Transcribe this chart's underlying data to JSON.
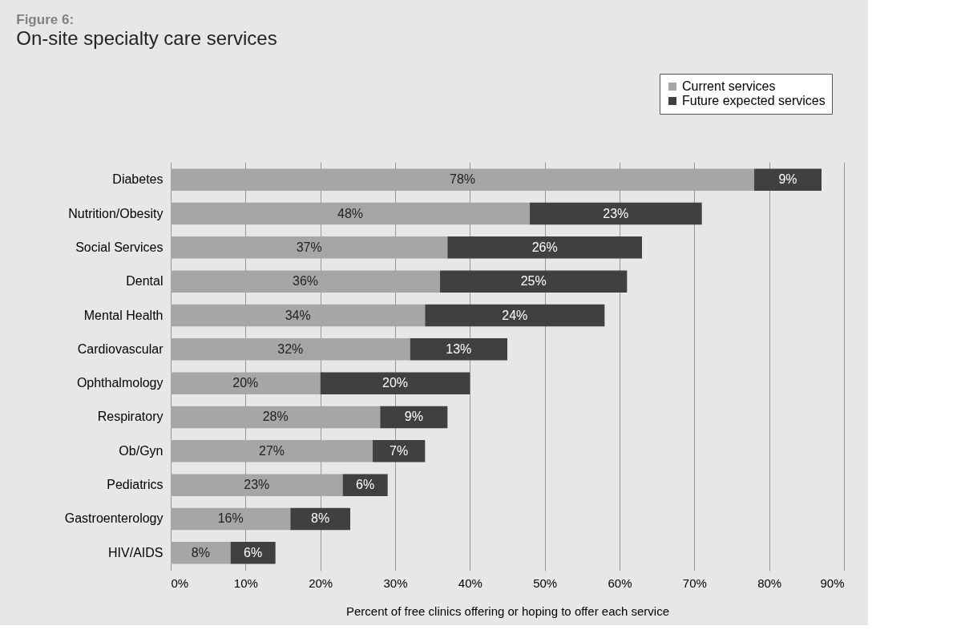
{
  "chart_data": {
    "type": "bar",
    "orientation": "horizontal",
    "stacked": true,
    "title": "Figure 6:",
    "subtitle": "On-site specialty care services",
    "xlabel": "Percent of free clinics offering or hoping to offer each service",
    "categories": [
      "Diabetes",
      "Nutrition/Obesity",
      "Social Services",
      "Dental",
      "Mental Health",
      "Cardiovascular",
      "Ophthalmology",
      "Respiratory",
      "Ob/Gyn",
      "Pediatrics",
      "Gastroenterology",
      "HIV/AIDS"
    ],
    "series": [
      {
        "name": "Current services",
        "color": "#a6a6a6",
        "values": [
          78,
          48,
          37,
          36,
          34,
          32,
          20,
          28,
          27,
          23,
          16,
          8
        ],
        "value_labels": [
          "78%",
          "48%",
          "37%",
          "36%",
          "34%",
          "32%",
          "20%",
          "28%",
          "27%",
          "23%",
          "16%",
          "8%"
        ]
      },
      {
        "name": "Future expected services",
        "color": "#404040",
        "values": [
          9,
          23,
          26,
          25,
          24,
          13,
          20,
          9,
          7,
          6,
          8,
          6
        ],
        "value_labels": [
          "9%",
          "23%",
          "26%",
          "25%",
          "24%",
          "13%",
          "20%",
          "9%",
          "7%",
          "6%",
          "8%",
          "6%"
        ]
      }
    ],
    "xlim": [
      0,
      90
    ],
    "xticks": [
      {
        "value": 0,
        "label": "0%"
      },
      {
        "value": 10,
        "label": "10%"
      },
      {
        "value": 20,
        "label": "20%"
      },
      {
        "value": 30,
        "label": "30%"
      },
      {
        "value": 40,
        "label": "40%"
      },
      {
        "value": 50,
        "label": "50%"
      },
      {
        "value": 60,
        "label": "60%"
      },
      {
        "value": 70,
        "label": "70%"
      },
      {
        "value": 80,
        "label": "80%"
      },
      {
        "value": 90,
        "label": "90%"
      }
    ],
    "grid": "x",
    "legend": "top right"
  }
}
